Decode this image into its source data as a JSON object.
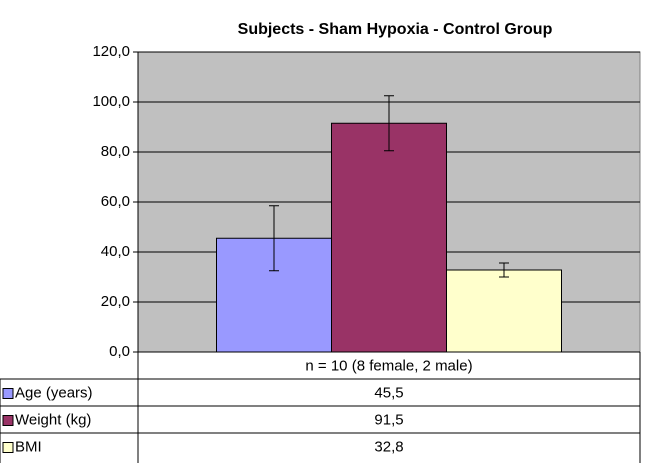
{
  "chart_data": {
    "type": "bar",
    "title": "Subjects - Sham Hypoxia - Control Group",
    "categories": [
      "n = 10 (8 female, 2 male)"
    ],
    "series": [
      {
        "name": "Age (years)",
        "color": "#9999ff",
        "values": [
          45.5
        ],
        "errors": [
          13
        ],
        "value_labels": [
          "45,5"
        ]
      },
      {
        "name": "Weight (kg)",
        "color": "#993366",
        "values": [
          91.5
        ],
        "errors": [
          11
        ],
        "value_labels": [
          "91,5"
        ]
      },
      {
        "name": "BMI",
        "color": "#ffffcc",
        "values": [
          32.8
        ],
        "errors": [
          2.8
        ],
        "value_labels": [
          "32,8"
        ]
      }
    ],
    "ylim": [
      0,
      120
    ],
    "yticks": [
      {
        "value": 0,
        "label": "0,0"
      },
      {
        "value": 20,
        "label": "20,0"
      },
      {
        "value": 40,
        "label": "40,0"
      },
      {
        "value": 60,
        "label": "60,0"
      },
      {
        "value": 80,
        "label": "80,0"
      },
      {
        "value": 100,
        "label": "100,0"
      },
      {
        "value": 120,
        "label": "120,0"
      }
    ],
    "grid": true,
    "plot_background": "#c0c0c0"
  }
}
